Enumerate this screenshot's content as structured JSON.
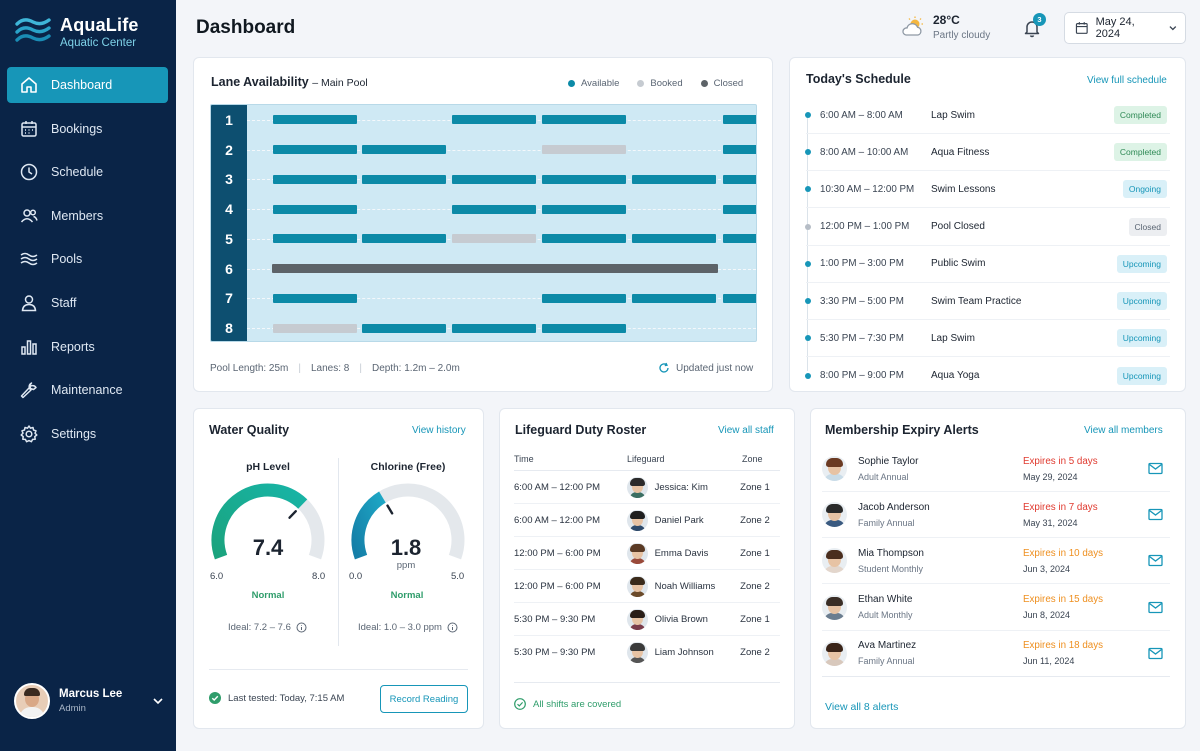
{
  "app": {
    "name": "AquaLife",
    "subtitle": "Aquatic Center"
  },
  "nav": [
    {
      "label": "Dashboard",
      "icon": "home-icon",
      "active": true
    },
    {
      "label": "Bookings",
      "icon": "calendar-icon"
    },
    {
      "label": "Schedule",
      "icon": "clock-icon"
    },
    {
      "label": "Members",
      "icon": "members-icon"
    },
    {
      "label": "Pools",
      "icon": "waves-icon"
    },
    {
      "label": "Staff",
      "icon": "user-icon"
    },
    {
      "label": "Reports",
      "icon": "bar-chart-icon"
    },
    {
      "label": "Maintenance",
      "icon": "wrench-icon"
    },
    {
      "label": "Settings",
      "icon": "gear-icon"
    }
  ],
  "user": {
    "name": "Marcus Lee",
    "role": "Admin"
  },
  "header": {
    "title": "Dashboard",
    "temperature": "28°C",
    "condition": "Partly cloudy",
    "notifications": "3",
    "date": "May 24, 2024"
  },
  "lanes": {
    "title": "Lane Availability",
    "subtitle": "– Main Pool",
    "legend": {
      "available": "Available",
      "booked": "Booked",
      "closed": "Closed"
    },
    "colors": {
      "available": "#0c8aa7",
      "booked": "#c6cbd1",
      "closed": "#5d6368"
    },
    "rows": [
      {
        "lane": "1",
        "slots": [
          "available",
          null,
          "available",
          "available",
          null,
          "available"
        ]
      },
      {
        "lane": "2",
        "slots": [
          "available",
          "available",
          null,
          "booked",
          null,
          "available"
        ]
      },
      {
        "lane": "3",
        "slots": [
          "available",
          "available",
          "available",
          "available",
          "available",
          "available"
        ]
      },
      {
        "lane": "4",
        "slots": [
          "available",
          null,
          "available",
          "available",
          null,
          "available"
        ]
      },
      {
        "lane": "5",
        "slots": [
          "available",
          "available",
          "booked",
          "available",
          "available",
          "available"
        ]
      },
      {
        "lane": "6",
        "slots": [
          "closed-all"
        ]
      },
      {
        "lane": "7",
        "slots": [
          "available",
          null,
          null,
          "available",
          "available",
          "available"
        ]
      },
      {
        "lane": "8",
        "slots": [
          "booked",
          "available",
          "available",
          "available",
          null,
          null
        ]
      }
    ],
    "footer": {
      "length": "Pool Length: 25m",
      "count": "Lanes: 8",
      "depth": "Depth: 1.2m – 2.0m",
      "updated": "Updated just now"
    }
  },
  "schedule": {
    "title": "Today's Schedule",
    "link": "View full schedule",
    "items": [
      {
        "time": "6:00 AM – 8:00 AM",
        "activity": "Lap Swim",
        "status": "Completed",
        "kind": "completed"
      },
      {
        "time": "8:00 AM – 10:00 AM",
        "activity": "Aqua Fitness",
        "status": "Completed",
        "kind": "completed"
      },
      {
        "time": "10:30 AM – 12:00 PM",
        "activity": "Swim Lessons",
        "status": "Ongoing",
        "kind": "ongoing"
      },
      {
        "time": "12:00 PM – 1:00 PM",
        "activity": "Pool Closed",
        "status": "Closed",
        "kind": "closed"
      },
      {
        "time": "1:00 PM – 3:00 PM",
        "activity": "Public Swim",
        "status": "Upcoming",
        "kind": "upcoming"
      },
      {
        "time": "3:30 PM – 5:00 PM",
        "activity": "Swim Team Practice",
        "status": "Upcoming",
        "kind": "upcoming"
      },
      {
        "time": "5:30 PM – 7:30 PM",
        "activity": "Lap Swim",
        "status": "Upcoming",
        "kind": "upcoming"
      },
      {
        "time": "8:00 PM – 9:00 PM",
        "activity": "Aqua Yoga",
        "status": "Upcoming",
        "kind": "upcoming"
      }
    ]
  },
  "water": {
    "title": "Water Quality",
    "link": "View history",
    "ph": {
      "label": "pH Level",
      "value": "7.4",
      "num": 7.4,
      "min": "6.0",
      "max": "8.0",
      "minNum": 6.0,
      "maxNum": 8.0,
      "status": "Normal",
      "ideal": "Ideal: 7.2 – 7.6",
      "unit": ""
    },
    "chlorine": {
      "label": "Chlorine (Free)",
      "value": "1.8",
      "num": 1.8,
      "min": "0.0",
      "max": "5.0",
      "minNum": 0.0,
      "maxNum": 5.0,
      "status": "Normal",
      "ideal": "Ideal: 1.0 – 3.0 ppm",
      "unit": "ppm"
    },
    "tested": "Last tested: Today, 7:15 AM",
    "button": "Record Reading"
  },
  "roster": {
    "title": "Lifeguard Duty Roster",
    "link": "View all staff",
    "headers": {
      "time": "Time",
      "guard": "Lifeguard",
      "zone": "Zone"
    },
    "rows": [
      {
        "time": "6:00 AM – 12:00 PM",
        "name": "Jessica: Kim",
        "zone": "Zone 1"
      },
      {
        "time": "6:00 AM – 12:00 PM",
        "name": "Daniel Park",
        "zone": "Zone 2"
      },
      {
        "time": "12:00 PM – 6:00 PM",
        "name": "Emma Davis",
        "zone": "Zone 1"
      },
      {
        "time": "12:00 PM – 6:00 PM",
        "name": "Noah Williams",
        "zone": "Zone 2"
      },
      {
        "time": "5:30 PM – 9:30 PM",
        "name": "Olivia Brown",
        "zone": "Zone 1"
      },
      {
        "time": "5:30 PM – 9:30 PM",
        "name": "Liam Johnson",
        "zone": "Zone 2"
      }
    ],
    "covered": "All shifts are covered"
  },
  "membership": {
    "title": "Membership Expiry Alerts",
    "link": "View all members",
    "rows": [
      {
        "name": "Sophie Taylor",
        "plan": "Adult Annual",
        "expires": "Expires in 5 days",
        "date": "May 29, 2024",
        "urgency": "red"
      },
      {
        "name": "Jacob Anderson",
        "plan": "Family Annual",
        "expires": "Expires in 7 days",
        "date": "May 31, 2024",
        "urgency": "red"
      },
      {
        "name": "Mia Thompson",
        "plan": "Student Monthly",
        "expires": "Expires in 10 days",
        "date": "Jun 3, 2024",
        "urgency": "orange"
      },
      {
        "name": "Ethan White",
        "plan": "Adult Monthly",
        "expires": "Expires in 15 days",
        "date": "Jun 8, 2024",
        "urgency": "orange"
      },
      {
        "name": "Ava Martinez",
        "plan": "Family Annual",
        "expires": "Expires in 18 days",
        "date": "Jun 11, 2024",
        "urgency": "orange"
      }
    ],
    "footer": "View all 8 alerts"
  }
}
